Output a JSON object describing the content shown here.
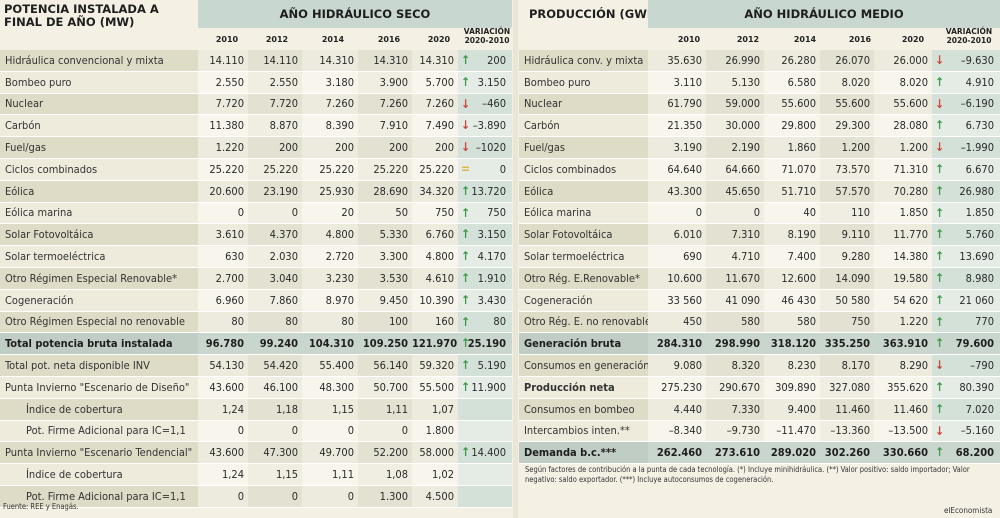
{
  "left": {
    "title": "POTENCIA INSTALADA A FINAL DE AÑO (MW)",
    "band": "AÑO HIDRÁULICO SECO",
    "years": [
      "2010",
      "2012",
      "2014",
      "2016",
      "2020"
    ],
    "var_header": [
      "VARIACIÓN",
      "2020-2010"
    ],
    "rows": [
      {
        "label": "Hidráulica convencional y mixta",
        "values": [
          "14.110",
          "14.110",
          "14.310",
          "14.310",
          "14.310"
        ],
        "arrow": "up",
        "var": "200"
      },
      {
        "label": "Bombeo puro",
        "values": [
          "2.550",
          "2.550",
          "3.180",
          "3.900",
          "5.700"
        ],
        "arrow": "up",
        "var": "3.150"
      },
      {
        "label": "Nuclear",
        "values": [
          "7.720",
          "7.720",
          "7.260",
          "7.260",
          "7.260"
        ],
        "arrow": "down",
        "var": "–460"
      },
      {
        "label": "Carbón",
        "values": [
          "11.380",
          "8.870",
          "8.390",
          "7.910",
          "7.490"
        ],
        "arrow": "down",
        "var": "–3.890"
      },
      {
        "label": "Fuel/gas",
        "values": [
          "1.220",
          "200",
          "200",
          "200",
          "200"
        ],
        "arrow": "down",
        "var": "–1020"
      },
      {
        "label": "Ciclos combinados",
        "values": [
          "25.220",
          "25.220",
          "25.220",
          "25.220",
          "25.220"
        ],
        "arrow": "eq",
        "var": "0"
      },
      {
        "label": "Eólica",
        "values": [
          "20.600",
          "23.190",
          "25.930",
          "28.690",
          "34.320"
        ],
        "arrow": "up",
        "var": "13.720"
      },
      {
        "label": "Eólica marina",
        "values": [
          "0",
          "0",
          "20",
          "50",
          "750"
        ],
        "arrow": "up",
        "var": "750"
      },
      {
        "label": "Solar Fotovoltáica",
        "values": [
          "3.610",
          "4.370",
          "4.800",
          "5.330",
          "6.760"
        ],
        "arrow": "up",
        "var": "3.150"
      },
      {
        "label": "Solar termoeléctrica",
        "values": [
          "630",
          "2.030",
          "2.720",
          "3.300",
          "4.800"
        ],
        "arrow": "up",
        "var": "4.170"
      },
      {
        "label": "Otro Régimen Especial Renovable*",
        "values": [
          "2.700",
          "3.040",
          "3.230",
          "3.530",
          "4.610"
        ],
        "arrow": "up",
        "var": "1.910"
      },
      {
        "label": "Cogeneración",
        "values": [
          "6.960",
          "7.860",
          "8.970",
          "9.450",
          "10.390"
        ],
        "arrow": "up",
        "var": "3.430"
      },
      {
        "label": "Otro Régimen Especial no renovable",
        "values": [
          "80",
          "80",
          "80",
          "100",
          "160"
        ],
        "arrow": "up",
        "var": "80"
      },
      {
        "label": "Total potencia bruta instalada",
        "values": [
          "96.780",
          "99.240",
          "104.310",
          "109.250",
          "121.970"
        ],
        "arrow": "up",
        "var": "25.190",
        "bold": true
      },
      {
        "label": "Total pot. neta disponible INV",
        "values": [
          "54.130",
          "54.420",
          "55.400",
          "56.140",
          "59.320"
        ],
        "arrow": "up",
        "var": "5.190"
      },
      {
        "label": "Punta Invierno \"Escenario de Diseño\"",
        "values": [
          "43.600",
          "46.100",
          "48.300",
          "50.700",
          "55.500"
        ],
        "arrow": "up",
        "var": "11.900"
      },
      {
        "label": "Índice de cobertura",
        "values": [
          "1,24",
          "1,18",
          "1,15",
          "1,11",
          "1,07"
        ],
        "arrow": "",
        "var": "",
        "indent": true
      },
      {
        "label": "Pot. Firme Adicional para IC=1,1",
        "values": [
          "0",
          "0",
          "0",
          "0",
          "1.800"
        ],
        "arrow": "",
        "var": "",
        "indent": true
      },
      {
        "label": "Punta Invierno \"Escenario Tendencial\"",
        "values": [
          "43.600",
          "47.300",
          "49.700",
          "52.200",
          "58.000"
        ],
        "arrow": "up",
        "var": "14.400"
      },
      {
        "label": "Índice de cobertura",
        "values": [
          "1,24",
          "1,15",
          "1,11",
          "1,08",
          "1,02"
        ],
        "arrow": "",
        "var": "",
        "indent": true
      },
      {
        "label": "Pot. Firme Adicional para IC=1,1",
        "values": [
          "0",
          "0",
          "0",
          "1.300",
          "4.500"
        ],
        "arrow": "",
        "var": "",
        "indent": true
      }
    ],
    "source": "Fuente: REE y Enagás."
  },
  "right": {
    "title": "PRODUCCIÓN (GWH)",
    "band": "AÑO HIDRÁULICO MEDIO",
    "years": [
      "2010",
      "2012",
      "2014",
      "2016",
      "2020"
    ],
    "var_header": [
      "VARIACIÓN",
      "2020-2010"
    ],
    "rows": [
      {
        "label": "Hidráulica conv. y mixta",
        "values": [
          "35.630",
          "26.990",
          "26.280",
          "26.070",
          "26.000"
        ],
        "arrow": "down",
        "var": "–9.630"
      },
      {
        "label": "Bombeo puro",
        "values": [
          "3.110",
          "5.130",
          "6.580",
          "8.020",
          "8.020"
        ],
        "arrow": "up",
        "var": "4.910"
      },
      {
        "label": "Nuclear",
        "values": [
          "61.790",
          "59.000",
          "55.600",
          "55.600",
          "55.600"
        ],
        "arrow": "down",
        "var": "–6.190"
      },
      {
        "label": "Carbón",
        "values": [
          "21.350",
          "30.000",
          "29.800",
          "29.300",
          "28.080"
        ],
        "arrow": "up",
        "var": "6.730"
      },
      {
        "label": "Fuel/gas",
        "values": [
          "3.190",
          "2.190",
          "1.860",
          "1.200",
          "1.200"
        ],
        "arrow": "down",
        "var": "–1.990"
      },
      {
        "label": "Ciclos combinados",
        "values": [
          "64.640",
          "64.660",
          "71.070",
          "73.570",
          "71.310"
        ],
        "arrow": "up",
        "var": "6.670"
      },
      {
        "label": "Eólica",
        "values": [
          "43.300",
          "45.650",
          "51.710",
          "57.570",
          "70.280"
        ],
        "arrow": "up",
        "var": "26.980"
      },
      {
        "label": "Eólica marina",
        "values": [
          "0",
          "0",
          "40",
          "110",
          "1.850"
        ],
        "arrow": "up",
        "var": "1.850"
      },
      {
        "label": "Solar Fotovoltáica",
        "values": [
          "6.010",
          "7.310",
          "8.190",
          "9.110",
          "11.770"
        ],
        "arrow": "up",
        "var": "5.760"
      },
      {
        "label": "Solar termoeléctrica",
        "values": [
          "690",
          "4.710",
          "7.400",
          "9.280",
          "14.380"
        ],
        "arrow": "up",
        "var": "13.690"
      },
      {
        "label": "Otro Rég. E.Renovable*",
        "values": [
          "10.600",
          "11.670",
          "12.600",
          "14.090",
          "19.580"
        ],
        "arrow": "up",
        "var": "8.980"
      },
      {
        "label": "Cogeneración",
        "values": [
          "33 560",
          "41 090",
          "46 430",
          "50 580",
          "54 620"
        ],
        "arrow": "up",
        "var": "21 060"
      },
      {
        "label": "Otro Rég. E. no renovable",
        "values": [
          "450",
          "580",
          "580",
          "750",
          "1.220"
        ],
        "arrow": "up",
        "var": "770"
      },
      {
        "label": "Generación bruta",
        "values": [
          "284.310",
          "298.990",
          "318.120",
          "335.250",
          "363.910"
        ],
        "arrow": "up",
        "var": "79.600",
        "bold": true
      },
      {
        "label": "Consumos en generación",
        "values": [
          "9.080",
          "8.320",
          "8.230",
          "8.170",
          "8.290"
        ],
        "arrow": "down",
        "var": "–790"
      },
      {
        "label": "Producción neta",
        "values": [
          "275.230",
          "290.670",
          "309.890",
          "327.080",
          "355.620"
        ],
        "arrow": "up",
        "var": "80.390",
        "boldlabel": true
      },
      {
        "label": "Consumos en bombeo",
        "values": [
          "4.440",
          "7.330",
          "9.400",
          "11.460",
          "11.460"
        ],
        "arrow": "up",
        "var": "7.020"
      },
      {
        "label": "Intercambios inten.**",
        "values": [
          "–8.340",
          "–9.730",
          "–11.470",
          "–13.360",
          "–13.500"
        ],
        "arrow": "down",
        "var": "–5.160"
      },
      {
        "label": "Demanda b.c.***",
        "values": [
          "262.460",
          "273.610",
          "289.020",
          "302.260",
          "330.660"
        ],
        "arrow": "up",
        "var": "68.200",
        "bold": true
      }
    ],
    "footnote": "Según factores de contribución a la punta de cada tecnología. (*) Incluye minihidráulica. (**) Valor positivo: saldo importador; Valor negativo: saldo exportador. (***) Incluye autoconsumos de cogeneración.",
    "credit": "elEconomista"
  }
}
